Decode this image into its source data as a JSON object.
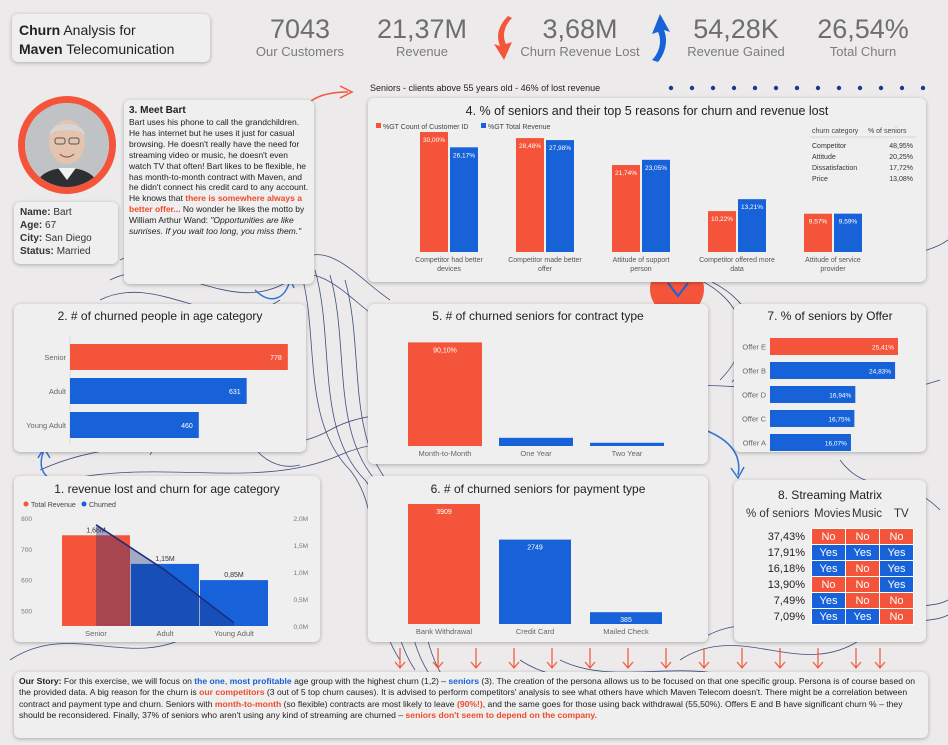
{
  "header": {
    "title_bold_1": "Churn",
    "title_1": " Analysis for",
    "title_bold_2": "Maven",
    "title_2": " Telecomunication"
  },
  "kpis": [
    {
      "value": "7043",
      "label": "Our Customers"
    },
    {
      "value": "21,37M",
      "label": "Revenue"
    },
    {
      "value": "3,68M",
      "label": "Churn Revenue Lost"
    },
    {
      "value": "54,28K",
      "label": "Revenue Gained"
    },
    {
      "value": "26,54%",
      "label": "Total Churn"
    }
  ],
  "persona": {
    "name_label": "Name:",
    "name": "Bart",
    "age_label": "Age:",
    "age": "67",
    "city_label": "City:",
    "city": "San Diego",
    "status_label": "Status:",
    "status": "Married",
    "meet_title": "3. Meet Bart",
    "story_1": "Bart uses his phone to call the grandchildren. He has internet but he uses it just for casual browsing. He doesn't really have the need for streaming video or music, he doesn't even watch TV that often! Bart likes to be flexible, he has month-to-month contract with Maven, and he didn't connect his credit card to any account. He knows that ",
    "story_highlight": "there is somewhere always a better offer...",
    "story_2": " No wonder he likes the motto by William Arthur Wand: ",
    "story_quote": "\"Opportunities are like sunrises. If you wait too long, you miss them.\""
  },
  "seniors_note": "Seniors - clients above 55 years old - 46% of lost revenue",
  "colors": {
    "red": "#f4553a",
    "blue": "#1762d8",
    "navy": "#1b2a7a",
    "bg": "#eceaea",
    "card": "#efefef"
  },
  "chart_data": [
    {
      "id": "4",
      "type": "bar",
      "title": "4. % of seniors and their top 5 reasons for churn and revenue lost",
      "categories": [
        "Competitor had better devices",
        "Competitor made better offer",
        "Attitude of support person",
        "Competitor offered more data",
        "Attitude of service provider"
      ],
      "series": [
        {
          "name": "%GT Count of Customer ID",
          "values": [
            30.0,
            28.48,
            21.74,
            10.22,
            9.57
          ],
          "labels": [
            "30,00%",
            "28,48%",
            "21,74%",
            "10,22%",
            "9,57%"
          ]
        },
        {
          "name": "%GT Total Revenue",
          "values": [
            26.17,
            27.98,
            23.05,
            13.21,
            9.59
          ],
          "labels": [
            "26,17%",
            "27,98%",
            "23,05%",
            "13,21%",
            "9,59%"
          ]
        }
      ],
      "side_table": {
        "headers": [
          "churn category",
          "% of seniors"
        ],
        "rows": [
          [
            "Competitor",
            "48,95%"
          ],
          [
            "Attitude",
            "20,25%"
          ],
          [
            "Dissatisfaction",
            "17,72%"
          ],
          [
            "Price",
            "13,08%"
          ]
        ]
      }
    },
    {
      "id": "2",
      "type": "bar",
      "orientation": "horizontal",
      "title": "2. # of churned people in age category",
      "categories": [
        "Senior",
        "Adult",
        "Young Adult"
      ],
      "values": [
        778,
        631,
        460
      ]
    },
    {
      "id": "5",
      "type": "bar",
      "title": "5. # of churned seniors for contract type",
      "categories": [
        "Month-to-Month",
        "One Year",
        "Two Year"
      ],
      "values": [
        90.1,
        7.1,
        2.8
      ],
      "labels": [
        "90,10%",
        "",
        ""
      ]
    },
    {
      "id": "7",
      "type": "bar",
      "orientation": "horizontal",
      "title": "7. % of seniors by Offer",
      "categories": [
        "Offer E",
        "Offer B",
        "Offer D",
        "Offer C",
        "Offer A"
      ],
      "values": [
        25.41,
        24.83,
        16.94,
        16.75,
        16.07
      ],
      "labels": [
        "25,41%",
        "24,83%",
        "16,94%",
        "16,75%",
        "16,07%"
      ]
    },
    {
      "id": "1",
      "type": "bar",
      "title": "1. revenue lost and churn for age category",
      "categories": [
        "Senior",
        "Adult",
        "Young Adult"
      ],
      "series": [
        {
          "name": "Total Revenue",
          "values": [
            1.68,
            1.15,
            0.85
          ],
          "labels": [
            "1,68M",
            "1,15M",
            "0,85M"
          ]
        },
        {
          "name": "Churned",
          "values": [
            778,
            631,
            460
          ]
        }
      ],
      "y_left_ticks": [
        "800",
        "700",
        "600",
        "500"
      ],
      "y_right_ticks": [
        "2,0M",
        "1,5M",
        "1,0M",
        "0,5M",
        "0,0M"
      ],
      "ylim_left": [
        450,
        800
      ],
      "ylim_right": [
        0,
        2.0
      ]
    },
    {
      "id": "6",
      "type": "bar",
      "title": "6. # of churned seniors for payment type",
      "categories": [
        "Bank Withdrawal",
        "Credit Card",
        "Mailed Check"
      ],
      "values": [
        3909,
        2749,
        385
      ]
    },
    {
      "id": "8",
      "type": "table",
      "title": "8. Streaming Matrix",
      "headers": [
        "% of seniors",
        "Movies",
        "Music",
        "TV"
      ],
      "rows": [
        [
          "37,43%",
          "No",
          "No",
          "No"
        ],
        [
          "17,91%",
          "Yes",
          "Yes",
          "Yes"
        ],
        [
          "16,18%",
          "Yes",
          "No",
          "Yes"
        ],
        [
          "13,90%",
          "No",
          "No",
          "Yes"
        ],
        [
          "7,49%",
          "Yes",
          "No",
          "No"
        ],
        [
          "7,09%",
          "Yes",
          "Yes",
          "No"
        ]
      ]
    }
  ],
  "story": {
    "p1": "Our Story:",
    "p2": " For this exercise, we will focus on ",
    "p3": "the one",
    "p4": ", ",
    "p5": "most profitable",
    "p6": " age group with the highest churn (1,2) – ",
    "p7": "seniors",
    "p8": " (3). The creation of the persona allows us to be focused on that one specific group. Persona is of course based on the provided data. A big reason for the churn is ",
    "p9": "our competitors",
    "p10": " (3 out of 5 top churn causes). It is advised to perform competitors' analysis to see what others have which Maven Telecom doesn't. There might be a correlation between contract and payment type and churn. Seniors with ",
    "p11": "month-to-month",
    "p12": " (so flexible) contracts are most likely to leave ",
    "p13": "(90%!)",
    "p14": ", and the same goes for those using back withdrawal (55,50%). Offers E and B have significant churn % – they should be reconsidered. Finally, 37% of seniors who aren't using any kind of streaming are churned – ",
    "p15": "seniors don't seem to depend on the company."
  }
}
